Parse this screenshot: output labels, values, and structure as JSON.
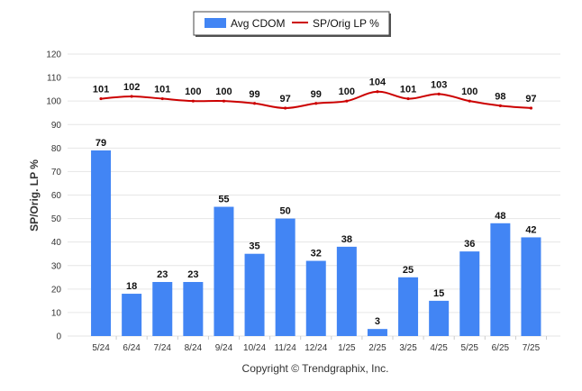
{
  "chart_data": {
    "type": "bar",
    "categories": [
      "5/24",
      "6/24",
      "7/24",
      "8/24",
      "9/24",
      "10/24",
      "11/24",
      "12/24",
      "1/25",
      "2/25",
      "3/25",
      "4/25",
      "5/25",
      "6/25",
      "7/25"
    ],
    "series": [
      {
        "name": "Avg CDOM",
        "kind": "bar",
        "color": "#4285f4",
        "values": [
          79,
          18,
          23,
          23,
          55,
          35,
          50,
          32,
          38,
          3,
          25,
          15,
          36,
          48,
          42
        ]
      },
      {
        "name": "SP/Orig LP %",
        "kind": "line",
        "color": "#cc0000",
        "values": [
          101,
          102,
          101,
          100,
          100,
          99,
          97,
          99,
          100,
          104,
          101,
          103,
          100,
          98,
          97
        ]
      }
    ],
    "title": "",
    "xlabel": "",
    "ylabel": "SP/Orig. LP %",
    "ylim": [
      0,
      120
    ],
    "yticks": [
      0,
      10,
      20,
      30,
      40,
      50,
      60,
      70,
      80,
      90,
      100,
      110,
      120
    ],
    "grid": true,
    "legend_position": "top-center",
    "credit": "Copyright © Trendgraphix, Inc."
  }
}
